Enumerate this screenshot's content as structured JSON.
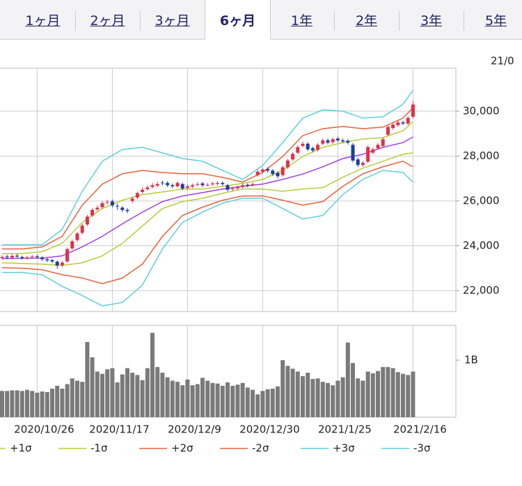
{
  "tabs": [
    "1ヶ月",
    "2ヶ月",
    "3ヶ月",
    "6ヶ月",
    "1年",
    "2年",
    "3年",
    "5年"
  ],
  "selected_tab": 3,
  "header_date": "21/0",
  "chart_data": [
    {
      "type": "candlestick",
      "ylim": [
        21070,
        31920
      ],
      "yticks": [
        {
          "value": 22000,
          "label": "22,000"
        },
        {
          "value": 24000,
          "label": "24,000"
        },
        {
          "value": 26000,
          "label": "26,000"
        },
        {
          "value": 28000,
          "label": "28,000"
        },
        {
          "value": 30000,
          "label": "30,000"
        }
      ],
      "up_color": "#e0304a",
      "down_color": "#1c3c9c",
      "open": [
        23450,
        23520,
        23470,
        23560,
        23500,
        23440,
        23490,
        23530,
        23480,
        23400,
        23360,
        23290,
        23130,
        23300,
        23880,
        24250,
        24580,
        24950,
        25350,
        25620,
        25720,
        25920,
        25980,
        25780,
        25700,
        25600,
        26000,
        26150,
        26400,
        26520,
        26620,
        26680,
        26820,
        26800,
        26700,
        26650,
        26750,
        26580,
        26640,
        26720,
        26780,
        26720,
        26740,
        26760,
        26800,
        26700,
        26520,
        26560,
        26620,
        26720,
        26700,
        27150,
        27300,
        27420,
        27350,
        27250,
        27150,
        27500,
        27850,
        28150,
        28450,
        28550,
        28350,
        28280,
        28550,
        28700,
        28620,
        28780,
        28700,
        28680,
        28500,
        27850,
        27600,
        27750,
        28150,
        28350,
        28450,
        28950,
        29250,
        29380,
        29500,
        29450,
        29750
      ],
      "high": [
        23580,
        23600,
        23620,
        23640,
        23560,
        23550,
        23600,
        23600,
        23540,
        23460,
        23420,
        23350,
        23320,
        23920,
        24280,
        24620,
        24980,
        25380,
        25680,
        25800,
        25980,
        26050,
        26060,
        25880,
        25760,
        25680,
        26200,
        26420,
        26600,
        26700,
        26800,
        26850,
        26900,
        26880,
        26780,
        26880,
        26820,
        26730,
        26780,
        26830,
        26850,
        26800,
        26850,
        26880,
        26870,
        26760,
        26630,
        26680,
        26780,
        26790,
        26830,
        27400,
        27480,
        27500,
        27420,
        27320,
        27580,
        27880,
        28180,
        28480,
        28650,
        28620,
        28430,
        28580,
        28780,
        28780,
        28830,
        28860,
        28780,
        28750,
        28580,
        27930,
        27780,
        28480,
        28380,
        28580,
        28830,
        29380,
        29480,
        29580,
        29580,
        29780,
        30450
      ],
      "low": [
        23380,
        23400,
        23420,
        23460,
        23380,
        23380,
        23430,
        23420,
        23320,
        23280,
        23220,
        22980,
        23050,
        23260,
        23820,
        24180,
        24500,
        24880,
        25280,
        25540,
        25650,
        25850,
        25720,
        25600,
        25500,
        25450,
        25900,
        26080,
        26320,
        26450,
        26550,
        26600,
        26700,
        26620,
        26560,
        26580,
        26480,
        26500,
        26570,
        26650,
        26620,
        26650,
        26670,
        26690,
        26680,
        26420,
        26450,
        26490,
        26550,
        26600,
        26640,
        27080,
        27220,
        27270,
        27120,
        27020,
        27080,
        27430,
        27780,
        28080,
        28380,
        28220,
        28170,
        28200,
        28480,
        28520,
        28550,
        28620,
        28580,
        28520,
        27720,
        27520,
        27520,
        27680,
        28080,
        28280,
        28380,
        28880,
        29180,
        29300,
        29380,
        29380,
        29680
      ],
      "close": [
        23500,
        23480,
        23550,
        23520,
        23450,
        23480,
        23520,
        23490,
        23400,
        23350,
        23300,
        23120,
        23250,
        23850,
        24200,
        24550,
        24900,
        25300,
        25600,
        25700,
        25900,
        25950,
        25800,
        25750,
        25600,
        25550,
        26100,
        26350,
        26500,
        26600,
        26700,
        26750,
        26800,
        26700,
        26650,
        26800,
        26550,
        26650,
        26700,
        26750,
        26700,
        26720,
        26780,
        26800,
        26750,
        26500,
        26550,
        26600,
        26700,
        26680,
        26750,
        27300,
        27400,
        27350,
        27200,
        27100,
        27500,
        27800,
        28100,
        28400,
        28550,
        28300,
        28250,
        28500,
        28700,
        28600,
        28750,
        28700,
        28650,
        28600,
        27800,
        27600,
        27700,
        28400,
        28300,
        28500,
        28750,
        29300,
        29400,
        29500,
        29450,
        29700,
        30300
      ],
      "band_x": [
        0,
        4,
        8,
        12,
        16,
        20,
        24,
        28,
        32,
        36,
        40,
        44,
        48,
        52,
        56,
        60,
        64,
        68,
        72,
        76,
        80,
        82
      ],
      "series": [
        {
          "color": "#a23ee0",
          "values": [
            23430,
            23440,
            23450,
            23550,
            23950,
            24420,
            24980,
            25500,
            25970,
            26220,
            26370,
            26530,
            26650,
            26750,
            26960,
            27200,
            27520,
            27890,
            28080,
            28390,
            28600,
            28850
          ]
        },
        {
          "name": "+1σ",
          "color": "#b6cc3a",
          "values": [
            23650,
            23650,
            23740,
            24110,
            25040,
            25660,
            26030,
            26280,
            26400,
            26530,
            26530,
            26650,
            26780,
            26960,
            27360,
            27980,
            28390,
            28600,
            28760,
            28820,
            29130,
            29530
          ]
        },
        {
          "name": "-1σ",
          "color": "#b6cc3a",
          "values": [
            23240,
            23210,
            23180,
            23120,
            23240,
            23550,
            24110,
            24880,
            25660,
            25970,
            26120,
            26340,
            26530,
            26530,
            26430,
            26530,
            26590,
            27060,
            27460,
            27770,
            28080,
            28140
          ]
        },
        {
          "name": "+2σ",
          "color": "#e8623a",
          "values": [
            23860,
            23860,
            23950,
            24420,
            25810,
            26750,
            27210,
            27360,
            27270,
            27210,
            27210,
            27050,
            26840,
            27270,
            27980,
            28910,
            29220,
            29320,
            29220,
            29290,
            29690,
            30160
          ]
        },
        {
          "name": "-2σ",
          "color": "#e8623a",
          "values": [
            23020,
            23000,
            22930,
            22710,
            22560,
            22310,
            22560,
            23180,
            24420,
            25350,
            25720,
            26030,
            26220,
            26220,
            26030,
            25810,
            25970,
            26650,
            27210,
            27520,
            27770,
            27520
          ]
        },
        {
          "name": "+3σ",
          "color": "#5ccfdc",
          "values": [
            24050,
            24050,
            24050,
            24730,
            26430,
            27770,
            28290,
            28390,
            28140,
            27890,
            27770,
            27360,
            26960,
            27580,
            28600,
            29690,
            30060,
            30000,
            29690,
            29750,
            30310,
            30930
          ]
        },
        {
          "name": "-3σ",
          "color": "#5ccfdc",
          "values": [
            22810,
            22810,
            22710,
            22190,
            21780,
            21320,
            21470,
            22250,
            23860,
            25040,
            25500,
            25900,
            26120,
            26120,
            25660,
            25190,
            25350,
            26280,
            26960,
            27360,
            27270,
            26840
          ]
        }
      ]
    },
    {
      "type": "bar",
      "color": "#7a7a7a",
      "ylim": [
        0,
        1610000000
      ],
      "yticks": [
        {
          "value": 1000000000,
          "label": "1B"
        }
      ],
      "categories": [
        null,
        null,
        null,
        null,
        null,
        null,
        null,
        "2020/10/26",
        null,
        null,
        null,
        null,
        null,
        null,
        null,
        null,
        null,
        null,
        null,
        null,
        null,
        null,
        "2020/11/17",
        null,
        null,
        null,
        null,
        null,
        null,
        null,
        null,
        null,
        null,
        null,
        null,
        null,
        null,
        "2020/12/9",
        null,
        null,
        null,
        null,
        null,
        null,
        null,
        null,
        null,
        null,
        null,
        null,
        null,
        null,
        "2020/12/30",
        null,
        null,
        null,
        null,
        null,
        null,
        null,
        null,
        null,
        null,
        null,
        null,
        null,
        null,
        "2021/1/25",
        null,
        null,
        null,
        null,
        null,
        null,
        null,
        null,
        null,
        null,
        null,
        null,
        null,
        null,
        "2021/2/16"
      ],
      "values": [
        460000000,
        460000000,
        470000000,
        470000000,
        460000000,
        480000000,
        460000000,
        430000000,
        450000000,
        440000000,
        500000000,
        550000000,
        500000000,
        580000000,
        680000000,
        640000000,
        620000000,
        1320000000,
        1050000000,
        800000000,
        760000000,
        840000000,
        860000000,
        610000000,
        750000000,
        860000000,
        780000000,
        740000000,
        650000000,
        860000000,
        1480000000,
        880000000,
        780000000,
        700000000,
        640000000,
        620000000,
        560000000,
        660000000,
        560000000,
        580000000,
        690000000,
        640000000,
        600000000,
        590000000,
        550000000,
        610000000,
        550000000,
        570000000,
        600000000,
        520000000,
        480000000,
        400000000,
        460000000,
        490000000,
        500000000,
        540000000,
        1000000000,
        900000000,
        850000000,
        800000000,
        720000000,
        780000000,
        670000000,
        680000000,
        620000000,
        600000000,
        560000000,
        640000000,
        700000000,
        1310000000,
        950000000,
        680000000,
        640000000,
        800000000,
        770000000,
        810000000,
        880000000,
        880000000,
        860000000,
        790000000,
        760000000,
        740000000,
        800000000
      ]
    }
  ]
}
